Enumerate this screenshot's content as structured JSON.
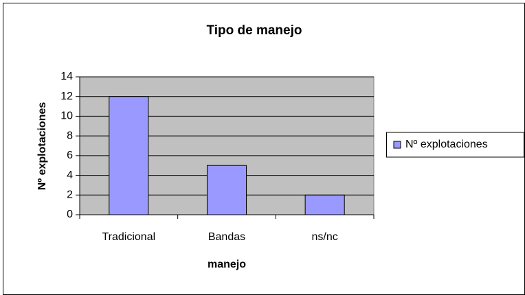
{
  "chart_data": {
    "type": "bar",
    "title": "Tipo de manejo",
    "x_label": "manejo",
    "y_label": "Nº explotaciones",
    "categories": [
      "Tradicional",
      "Bandas",
      "ns/nc"
    ],
    "series": [
      {
        "name": "Nº explotaciones",
        "color": "#9999ff",
        "values": [
          12,
          5,
          2
        ]
      }
    ],
    "ylim": [
      0,
      14
    ],
    "yticks": [
      0,
      2,
      4,
      6,
      8,
      10,
      12,
      14
    ],
    "grid": true,
    "legend": "right"
  }
}
